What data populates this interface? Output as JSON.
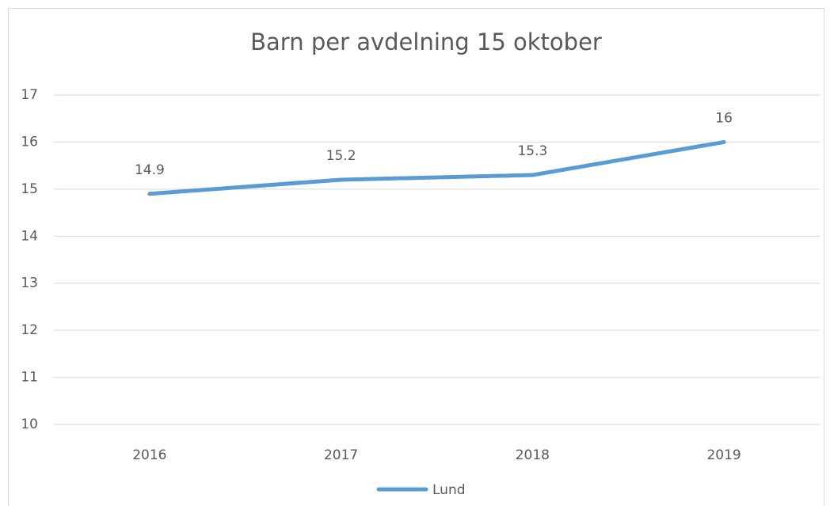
{
  "chart_data": {
    "type": "line",
    "title": "Barn per avdelning 15 oktober",
    "categories": [
      "2016",
      "2017",
      "2018",
      "2019"
    ],
    "series": [
      {
        "name": "Lund",
        "color": "#5b9bd5",
        "values": [
          14.9,
          15.2,
          15.3,
          16
        ]
      }
    ],
    "ylim": [
      10,
      17
    ],
    "yticks": [
      10,
      11,
      12,
      13,
      14,
      15,
      16,
      17
    ],
    "grid": true,
    "legend": "bottom"
  }
}
